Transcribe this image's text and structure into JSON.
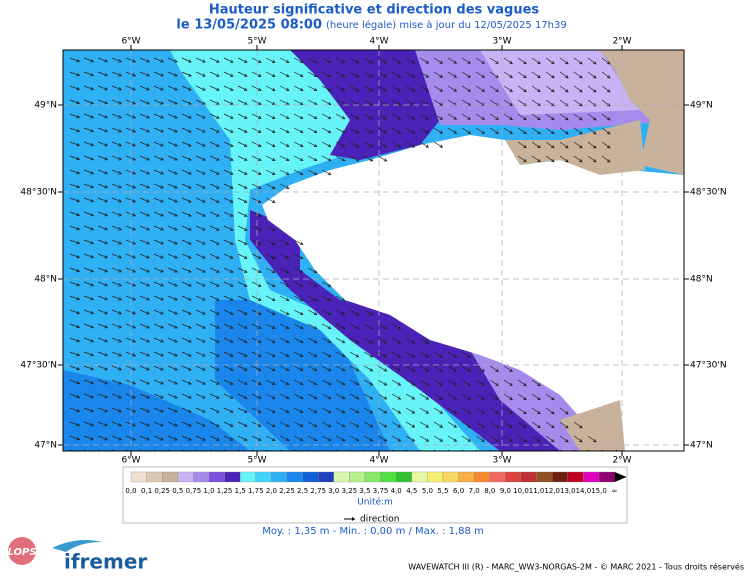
{
  "header": {
    "title": "Hauteur significative et direction des vagues",
    "date": "le 13/05/2025 08:00",
    "update": "(heure légale) mise à jour du 12/05/2025 17h39"
  },
  "map": {
    "lon_labels": [
      "6°W",
      "5°W",
      "4°W",
      "3°W",
      "2°W"
    ],
    "lat_labels": [
      "49°N",
      "48°30'N",
      "48°N",
      "47°30'N",
      "47°N"
    ]
  },
  "legend": {
    "levels": [
      "0,0",
      "0,1",
      "0,25",
      "0,5",
      "0,75",
      "1,0",
      "1,25",
      "1,5",
      "1,75",
      "2,0",
      "2,25",
      "2,5",
      "2,75",
      "3,0",
      "3,25",
      "3,5",
      "3,75",
      "4,0",
      "4,5",
      "5,0",
      "5,5",
      "6,0",
      "7,0",
      "8,0",
      "9,0",
      "10,0",
      "11,0",
      "12,0",
      "13,0",
      "14,0",
      "15,0",
      "∞"
    ],
    "colors": [
      "#efe0cf",
      "#dcc8b2",
      "#c9b29b",
      "#c8b4f4",
      "#a58cec",
      "#7a50dc",
      "#4a22b8",
      "#66f4f8",
      "#40d4f8",
      "#30b0f4",
      "#1a86ec",
      "#1060d8",
      "#2040c0",
      "#d8f8b0",
      "#b8f090",
      "#88e868",
      "#50e040",
      "#30c030",
      "#e8f8a0",
      "#f8f070",
      "#f8d860",
      "#f8b040",
      "#f88830",
      "#f06860",
      "#e04040",
      "#c03030",
      "#905020",
      "#702010",
      "#c00020",
      "#e000c0",
      "#900070"
    ],
    "unit": "Unité:m",
    "direction": "direction",
    "stats": "Moy. : 1,35 m  -  Min. : 0,00 m / Max. : 1,88 m"
  },
  "branding": {
    "lops": "LOPS",
    "ifremer": "ifremer",
    "footer": "WAVEWATCH III (R) - MARC_WW3-NORGAS-2M - © MARC 2021 - Tous droits réservés"
  }
}
